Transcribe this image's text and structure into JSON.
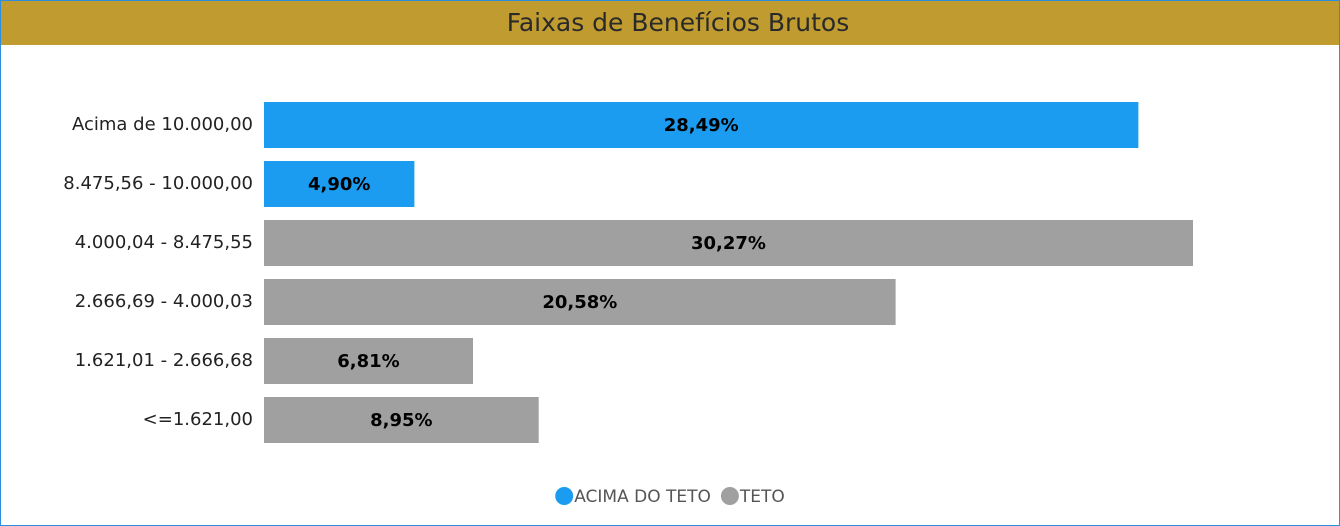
{
  "chart_data": {
    "type": "hbar",
    "title": "Faixas de Benefícios Brutos",
    "categories": [
      "Acima de 10.000,00",
      "8.475,56 - 10.000,00",
      "4.000,04 - 8.475,55",
      "2.666,69 - 4.000,03",
      "1.621,01 - 2.666,68",
      "<=1.621,00"
    ],
    "series": [
      {
        "name": "ACIMA DO TETO",
        "color": "#1c9cf0",
        "values": [
          28.49,
          4.9,
          null,
          null,
          null,
          null
        ],
        "value_labels": [
          "28,49%",
          "4,90%",
          null,
          null,
          null,
          null
        ]
      },
      {
        "name": "TETO",
        "color": "#a0a0a0",
        "values": [
          null,
          null,
          30.27,
          20.58,
          6.81,
          8.95
        ],
        "value_labels": [
          null,
          null,
          "30,27%",
          "20,58%",
          "6,81%",
          "8,95%"
        ]
      }
    ],
    "xlim": [
      0,
      30.27
    ],
    "legend": "bottom"
  }
}
